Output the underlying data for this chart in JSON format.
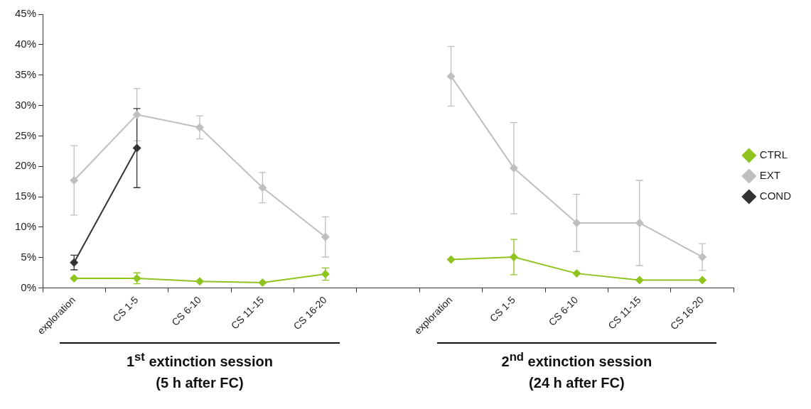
{
  "chart_data": {
    "type": "line",
    "categories": [
      "exploration",
      "CS 1-5",
      "CS 6-10",
      "CS 11-15",
      "CS 16-20",
      null,
      "exploration",
      "CS 1-5",
      "CS 6-10",
      "CS 11-15",
      "CS 16-20"
    ],
    "series": [
      {
        "name": "CTRL",
        "color": "#8fc31f",
        "values": [
          1.6,
          1.6,
          1.1,
          0.9,
          2.3,
          null,
          4.7,
          5.1,
          2.4,
          1.3,
          1.3
        ],
        "errors": [
          null,
          0.9,
          null,
          null,
          1.0,
          null,
          null,
          2.9,
          null,
          null,
          null
        ]
      },
      {
        "name": "EXT",
        "color": "#bfbfbf",
        "values": [
          17.7,
          28.5,
          26.4,
          16.5,
          8.4,
          null,
          34.8,
          19.7,
          10.7,
          10.7,
          5.1
        ],
        "errors": [
          5.7,
          4.3,
          1.9,
          2.5,
          3.3,
          null,
          4.9,
          7.5,
          4.7,
          7.0,
          2.2
        ]
      },
      {
        "name": "COND",
        "color": "#333333",
        "values": [
          4.2,
          23.0,
          null,
          null,
          null,
          null,
          null,
          null,
          null,
          null,
          null
        ],
        "errors": [
          1.2,
          6.5,
          null,
          null,
          null,
          null,
          null,
          null,
          null,
          null,
          null
        ]
      }
    ],
    "ylim": [
      0,
      45
    ],
    "yticks": [
      {
        "value": 0,
        "label": "0%"
      },
      {
        "value": 5,
        "label": "5%"
      },
      {
        "value": 10,
        "label": "10%"
      },
      {
        "value": 15,
        "label": "15%"
      },
      {
        "value": 20,
        "label": "20%"
      },
      {
        "value": 25,
        "label": "25%"
      },
      {
        "value": 30,
        "label": "30%"
      },
      {
        "value": 35,
        "label": "35%"
      },
      {
        "value": 40,
        "label": "40%"
      },
      {
        "value": 45,
        "label": "45%"
      }
    ],
    "grid": false,
    "legend": "right",
    "marker": "diamond",
    "line_style": "solid",
    "annotations": [
      "1$^{st}$ extinction session\n(5 h after FC)",
      "2$^{nd}$ extinction session\n(24 h after FC)"
    ]
  }
}
